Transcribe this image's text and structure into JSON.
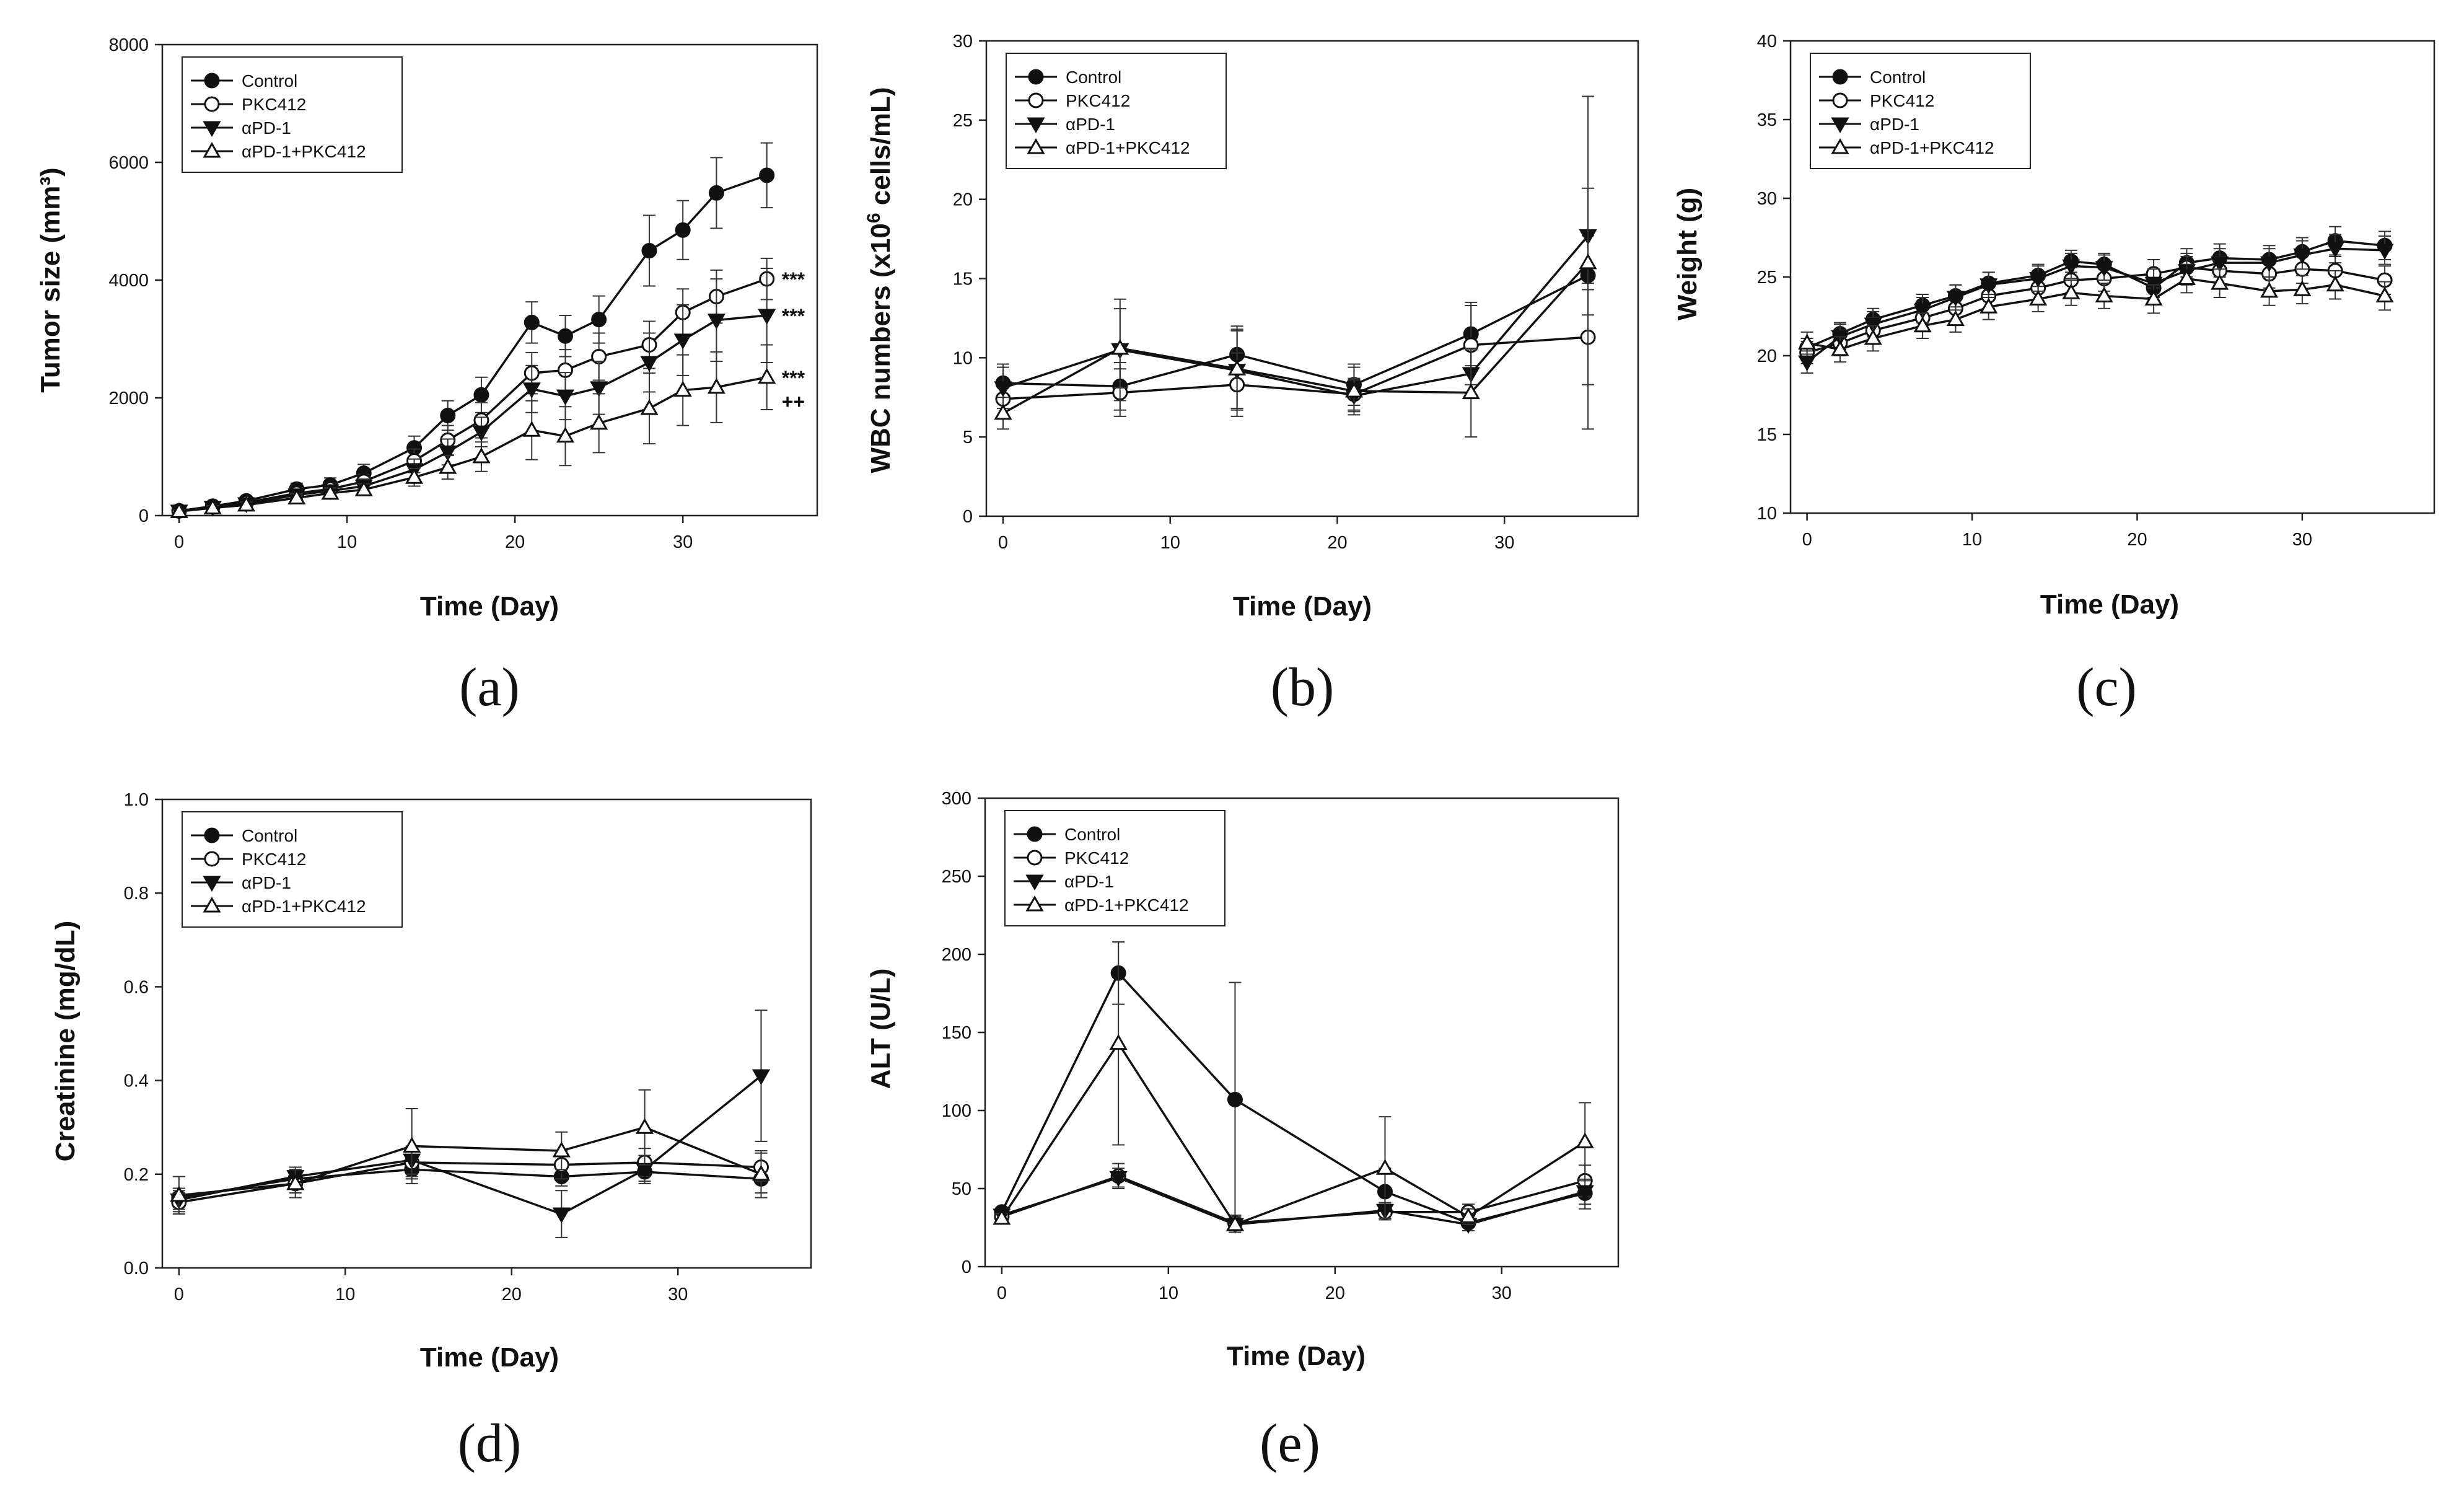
{
  "legend_labels": [
    "Control",
    "PKC412",
    "αPD-1",
    "αPD-1+PKC412"
  ],
  "series_styles": {
    "Control": {
      "marker": "circle",
      "fill": "#111111",
      "line": "#111111"
    },
    "PKC412": {
      "marker": "circle",
      "fill": "#ffffff",
      "line": "#111111"
    },
    "αPD-1": {
      "marker": "triangle-down",
      "fill": "#111111",
      "line": "#111111"
    },
    "αPD-1+PKC412": {
      "marker": "triangle-up",
      "fill": "#ffffff",
      "line": "#111111"
    }
  },
  "chart_data": [
    {
      "type": "line",
      "panel_label": "(a)",
      "title": "",
      "xlabel": "Time (Day)",
      "ylabel": "Tumor size (mm³)",
      "xlim": [
        -1,
        38
      ],
      "ylim": [
        0,
        8000
      ],
      "xticks": [
        0,
        10,
        20,
        30
      ],
      "yticks": [
        0,
        2000,
        4000,
        6000,
        8000
      ],
      "series": [
        {
          "name": "Control",
          "x": [
            0,
            2,
            4,
            7,
            9,
            11,
            14,
            16,
            18,
            21,
            23,
            25,
            28,
            30,
            32,
            35
          ],
          "y": [
            80,
            160,
            250,
            450,
            520,
            720,
            1150,
            1700,
            2050,
            3280,
            3050,
            3330,
            4500,
            4850,
            5480,
            5780
          ],
          "err": [
            30,
            40,
            60,
            100,
            120,
            150,
            200,
            250,
            300,
            350,
            350,
            400,
            600,
            500,
            600,
            550
          ]
        },
        {
          "name": "PKC412",
          "x": [
            0,
            2,
            4,
            7,
            9,
            11,
            14,
            16,
            18,
            21,
            23,
            25,
            28,
            30,
            32,
            35
          ],
          "y": [
            80,
            150,
            220,
            380,
            450,
            580,
            930,
            1280,
            1620,
            2420,
            2470,
            2700,
            2900,
            3450,
            3720,
            4020
          ],
          "err": [
            30,
            40,
            50,
            90,
            100,
            120,
            200,
            250,
            300,
            350,
            350,
            400,
            400,
            400,
            450,
            350
          ]
        },
        {
          "name": "αPD-1",
          "x": [
            0,
            2,
            4,
            7,
            9,
            11,
            14,
            16,
            18,
            21,
            23,
            25,
            28,
            30,
            32,
            35
          ],
          "y": [
            75,
            140,
            200,
            350,
            420,
            500,
            780,
            1080,
            1420,
            2150,
            2030,
            2170,
            2600,
            2980,
            3320,
            3400
          ],
          "err": [
            30,
            40,
            50,
            80,
            100,
            120,
            180,
            220,
            250,
            400,
            400,
            450,
            500,
            600,
            700,
            800
          ]
        },
        {
          "name": "αPD-1+PKC412",
          "x": [
            0,
            2,
            4,
            7,
            9,
            11,
            14,
            16,
            18,
            21,
            23,
            25,
            28,
            30,
            32,
            35
          ],
          "y": [
            70,
            130,
            180,
            300,
            380,
            440,
            650,
            820,
            1000,
            1450,
            1350,
            1570,
            1820,
            2130,
            2180,
            2350
          ],
          "err": [
            30,
            40,
            50,
            70,
            90,
            100,
            150,
            200,
            250,
            500,
            500,
            500,
            600,
            600,
            600,
            550
          ]
        }
      ],
      "annotations": [
        {
          "text": "***",
          "x": 35,
          "y": 4020
        },
        {
          "text": "***",
          "x": 35,
          "y": 3400
        },
        {
          "text": "***",
          "x": 35,
          "y": 2350
        },
        {
          "text": "++",
          "x": 35,
          "y": 1950
        }
      ]
    },
    {
      "type": "line",
      "panel_label": "(b)",
      "title": "",
      "xlabel": "Time (Day)",
      "ylabel_parts": [
        "WBC numbers (x10",
        "6",
        " cells/mL)"
      ],
      "xlim": [
        -1,
        38
      ],
      "ylim": [
        0,
        30
      ],
      "xticks": [
        0,
        10,
        20,
        30
      ],
      "yticks": [
        0,
        5,
        10,
        15,
        20,
        25,
        30
      ],
      "series": [
        {
          "name": "Control",
          "x": [
            0,
            7,
            14,
            21,
            28,
            35
          ],
          "y": [
            8.4,
            8.2,
            10.2,
            8.3,
            11.5,
            15.2
          ],
          "err": [
            1.2,
            1.5,
            1.8,
            1.3,
            2.0,
            2.5
          ]
        },
        {
          "name": "PKC412",
          "x": [
            0,
            7,
            14,
            21,
            28,
            35
          ],
          "y": [
            7.4,
            7.8,
            8.3,
            7.7,
            10.8,
            11.3
          ],
          "err": [
            1.0,
            1.5,
            2.0,
            1.0,
            2.5,
            3.0
          ]
        },
        {
          "name": "αPD-1",
          "x": [
            0,
            7,
            14,
            21,
            28,
            35
          ],
          "y": [
            8.1,
            10.5,
            9.2,
            7.6,
            9.0,
            17.7
          ],
          "err": [
            1.3,
            3.2,
            2.5,
            1.0,
            1.5,
            3.0
          ]
        },
        {
          "name": "αPD-1+PKC412",
          "x": [
            0,
            7,
            14,
            21,
            28,
            35
          ],
          "y": [
            6.5,
            10.6,
            9.3,
            7.9,
            7.8,
            16.0
          ],
          "err": [
            1.0,
            2.5,
            2.5,
            1.5,
            2.8,
            10.5
          ]
        }
      ]
    },
    {
      "type": "line",
      "panel_label": "(c)",
      "title": "",
      "xlabel": "Time (Day)",
      "ylabel": "Weight (g)",
      "xlim": [
        -1,
        38
      ],
      "ylim": [
        10,
        40
      ],
      "xticks": [
        0,
        10,
        20,
        30
      ],
      "yticks": [
        10,
        15,
        20,
        25,
        30,
        35,
        40
      ],
      "series": [
        {
          "name": "Control",
          "x": [
            0,
            2,
            4,
            7,
            9,
            11,
            14,
            16,
            18,
            21,
            23,
            25,
            28,
            30,
            32,
            35
          ],
          "y": [
            20.5,
            21.4,
            22.3,
            23.2,
            23.8,
            24.6,
            25.1,
            26.0,
            25.8,
            24.3,
            25.9,
            26.2,
            26.1,
            26.6,
            27.3,
            27.0
          ],
          "err": [
            0.6,
            0.7,
            0.7,
            0.7,
            0.7,
            0.7,
            0.7,
            0.7,
            0.7,
            0.8,
            0.9,
            0.9,
            0.9,
            0.9,
            0.9,
            0.9
          ]
        },
        {
          "name": "PKC412",
          "x": [
            0,
            2,
            4,
            7,
            9,
            11,
            14,
            16,
            18,
            21,
            23,
            25,
            28,
            30,
            32,
            35
          ],
          "y": [
            20.2,
            20.8,
            21.6,
            22.4,
            23.0,
            23.8,
            24.3,
            24.8,
            24.9,
            25.2,
            25.6,
            25.4,
            25.2,
            25.5,
            25.4,
            24.8
          ],
          "err": [
            0.7,
            0.8,
            0.8,
            0.8,
            0.8,
            0.8,
            0.8,
            0.8,
            0.8,
            0.9,
            0.9,
            0.9,
            0.9,
            0.9,
            0.9,
            0.9
          ]
        },
        {
          "name": "αPD-1",
          "x": [
            0,
            2,
            4,
            7,
            9,
            11,
            14,
            16,
            18,
            21,
            23,
            25,
            28,
            30,
            32,
            35
          ],
          "y": [
            19.6,
            21.2,
            22.0,
            22.9,
            23.7,
            24.5,
            24.9,
            25.7,
            25.6,
            24.6,
            25.4,
            25.9,
            25.9,
            26.4,
            26.8,
            26.7
          ],
          "err": [
            0.7,
            0.8,
            0.8,
            0.8,
            0.8,
            0.8,
            0.8,
            0.8,
            0.8,
            0.9,
            0.9,
            0.9,
            0.9,
            0.9,
            0.9,
            0.9
          ]
        },
        {
          "name": "αPD-1+PKC412",
          "x": [
            0,
            2,
            4,
            7,
            9,
            11,
            14,
            16,
            18,
            21,
            23,
            25,
            28,
            30,
            32,
            35
          ],
          "y": [
            20.8,
            20.4,
            21.1,
            21.9,
            22.3,
            23.1,
            23.6,
            24.0,
            23.8,
            23.6,
            24.9,
            24.6,
            24.1,
            24.2,
            24.5,
            23.8
          ],
          "err": [
            0.7,
            0.8,
            0.8,
            0.8,
            0.8,
            0.8,
            0.8,
            0.8,
            0.8,
            0.9,
            0.9,
            0.9,
            0.9,
            0.9,
            0.9,
            0.9
          ]
        }
      ]
    },
    {
      "type": "line",
      "panel_label": "(d)",
      "title": "",
      "xlabel": "Time (Day)",
      "ylabel": "Creatinine (mg/dL)",
      "xlim": [
        -1,
        38
      ],
      "ylim": [
        0.0,
        1.0
      ],
      "xticks": [
        0,
        10,
        20,
        30
      ],
      "yticks": [
        0.0,
        0.2,
        0.4,
        0.6,
        0.8,
        1.0
      ],
      "ytick_decimals": 1,
      "series": [
        {
          "name": "Control",
          "x": [
            0,
            7,
            14,
            23,
            28,
            35
          ],
          "y": [
            0.15,
            0.19,
            0.21,
            0.195,
            0.205,
            0.19
          ],
          "err": [
            0.02,
            0.02,
            0.02,
            0.02,
            0.02,
            0.03
          ]
        },
        {
          "name": "PKC412",
          "x": [
            0,
            7,
            14,
            23,
            28,
            35
          ],
          "y": [
            0.14,
            0.18,
            0.225,
            0.22,
            0.225,
            0.215
          ],
          "err": [
            0.02,
            0.02,
            0.03,
            0.03,
            0.03,
            0.03
          ]
        },
        {
          "name": "αPD-1",
          "x": [
            0,
            7,
            14,
            23,
            28,
            35
          ],
          "y": [
            0.145,
            0.195,
            0.23,
            0.115,
            0.21,
            0.41
          ],
          "err": [
            0.02,
            0.02,
            0.03,
            0.05,
            0.03,
            0.14
          ]
        },
        {
          "name": "αPD-1+PKC412",
          "x": [
            0,
            7,
            14,
            23,
            28,
            35
          ],
          "y": [
            0.155,
            0.18,
            0.26,
            0.25,
            0.3,
            0.2
          ],
          "err": [
            0.04,
            0.03,
            0.08,
            0.04,
            0.08,
            0.05
          ]
        }
      ]
    },
    {
      "type": "line",
      "panel_label": "(e)",
      "title": "",
      "xlabel": "Time (Day)",
      "ylabel": "ALT (U/L)",
      "xlim": [
        -1,
        37
      ],
      "ylim": [
        0,
        300
      ],
      "xticks": [
        0,
        10,
        20,
        30
      ],
      "yticks": [
        0,
        50,
        100,
        150,
        200,
        250,
        300
      ],
      "series": [
        {
          "name": "Control",
          "x": [
            0,
            7,
            14,
            23,
            28,
            35
          ],
          "y": [
            35,
            188,
            107,
            48,
            28,
            47
          ],
          "err": [
            3,
            20,
            75,
            15,
            5,
            10
          ]
        },
        {
          "name": "PKC412",
          "x": [
            0,
            7,
            14,
            23,
            28,
            35
          ],
          "y": [
            32,
            58,
            28,
            35,
            35,
            55
          ],
          "err": [
            3,
            8,
            5,
            5,
            5,
            10
          ]
        },
        {
          "name": "αPD-1",
          "x": [
            0,
            7,
            14,
            23,
            28,
            35
          ],
          "y": [
            33,
            57,
            27,
            36,
            27,
            48
          ],
          "err": [
            3,
            6,
            4,
            5,
            4,
            8
          ]
        },
        {
          "name": "αPD-1+PKC412",
          "x": [
            0,
            7,
            14,
            23,
            28,
            35
          ],
          "y": [
            31,
            143,
            27,
            63,
            32,
            80
          ],
          "err": [
            3,
            65,
            5,
            33,
            5,
            25
          ]
        }
      ]
    }
  ]
}
